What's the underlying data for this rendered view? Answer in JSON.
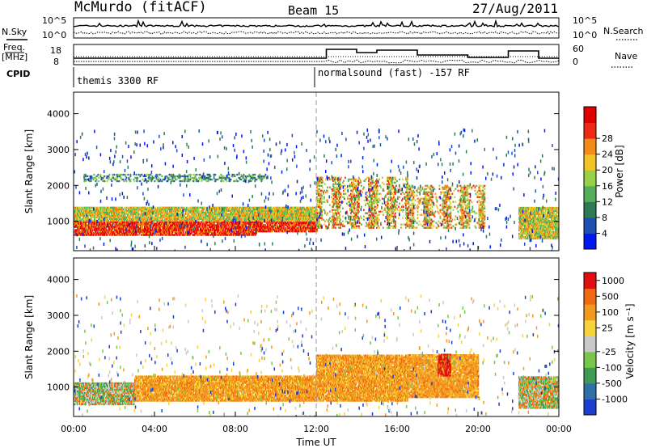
{
  "header": {
    "station": "McMurdo (fitACF)",
    "beam": "Beam 15",
    "date": "27/Aug/2011"
  },
  "status_panels": {
    "nsky_label": "N.Sky",
    "nsearch_label": "N.Search",
    "noise_ticks_left": [
      "10^5",
      "10^0"
    ],
    "noise_ticks_right": [
      "10^5",
      "10^0"
    ],
    "freq_label_1": "Freq.",
    "freq_label_2": "[MHz]",
    "freq_ticks": [
      "18",
      "8"
    ],
    "nave_label": "Nave",
    "nave_ticks": [
      "60",
      "0"
    ],
    "cpid_label": "CPID",
    "cpid_segments": [
      "themis 3300 RF",
      "normalsound (fast) -157 RF"
    ]
  },
  "chart_data": [
    {
      "type": "heatmap",
      "quantity": "power",
      "ylabel": "Slant Range [km]",
      "ylim": [
        180,
        4600
      ],
      "yticks": [
        "1000",
        "2000",
        "3000",
        "4000"
      ],
      "xlim_hours": [
        0,
        24
      ],
      "xticks": [
        "00:00",
        "04:00",
        "08:00",
        "12:00",
        "16:00",
        "20:00",
        "00:00"
      ],
      "colorbar": {
        "label": "Power [dB]",
        "ticks": [
          "4",
          "8",
          "12",
          "16",
          "20",
          "24",
          "28"
        ],
        "colors": [
          "#0018f0",
          "#1e4fb5",
          "#2f7a52",
          "#54ad5b",
          "#99d146",
          "#f2c426",
          "#f58a18",
          "#ee2a12",
          "#e00000"
        ]
      },
      "echo_bands": [
        {
          "h_start": 0.0,
          "h_end": 9.0,
          "range_km": [
            600,
            1000
          ],
          "level": "strong"
        },
        {
          "h_start": 9.0,
          "h_end": 12.0,
          "range_km": [
            700,
            1200
          ],
          "level": "strong"
        },
        {
          "h_start": 0.0,
          "h_end": 12.0,
          "range_km": [
            1000,
            1400
          ],
          "level": "medium"
        },
        {
          "h_start": 0.5,
          "h_end": 9.5,
          "range_km": [
            2100,
            2300
          ],
          "level": "weak"
        },
        {
          "h_start": 12.0,
          "h_end": 16.5,
          "range_km": [
            800,
            2200
          ],
          "level": "striated"
        },
        {
          "h_start": 16.5,
          "h_end": 20.3,
          "range_km": [
            800,
            2000
          ],
          "level": "striated"
        },
        {
          "h_start": 22.0,
          "h_end": 24.0,
          "range_km": [
            500,
            1400
          ],
          "level": "medium"
        }
      ]
    },
    {
      "type": "heatmap",
      "quantity": "velocity",
      "ylabel": "Slant Range [km]",
      "ylim": [
        180,
        4600
      ],
      "yticks": [
        "1000",
        "2000",
        "3000",
        "4000"
      ],
      "xlim_hours": [
        0,
        24
      ],
      "xticks": [
        "00:00",
        "04:00",
        "08:00",
        "12:00",
        "16:00",
        "20:00",
        "00:00"
      ],
      "xlabel": "Time UT",
      "colorbar": {
        "label": "Velocity [m s⁻¹]",
        "ticks": [
          "1000",
          "500",
          "100",
          "25",
          "-25",
          "-100",
          "-500",
          "-1000"
        ],
        "colors": [
          "#1a3fd0",
          "#2e6fa8",
          "#3f9c55",
          "#77c74a",
          "#c9c9c9",
          "#f7d23a",
          "#f29a1e",
          "#f06a12",
          "#e11010"
        ]
      },
      "echo_bands": [
        {
          "h_start": 0.0,
          "h_end": 3.0,
          "range_km": [
            500,
            1100
          ],
          "level": "ground-green"
        },
        {
          "h_start": 3.0,
          "h_end": 12.0,
          "range_km": [
            600,
            1300
          ],
          "level": "orange"
        },
        {
          "h_start": 12.0,
          "h_end": 16.5,
          "range_km": [
            600,
            1900
          ],
          "level": "orange"
        },
        {
          "h_start": 16.5,
          "h_end": 20.0,
          "range_km": [
            700,
            1900
          ],
          "level": "orange"
        },
        {
          "h_start": 18.0,
          "h_end": 18.6,
          "range_km": [
            1300,
            1900
          ],
          "level": "red"
        },
        {
          "h_start": 22.0,
          "h_end": 24.0,
          "range_km": [
            400,
            1300
          ],
          "level": "mixed"
        }
      ]
    }
  ]
}
